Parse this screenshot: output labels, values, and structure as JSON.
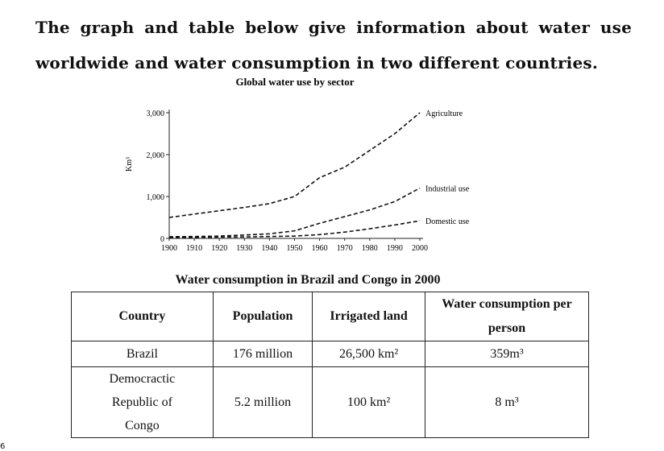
{
  "heading": "The graph and table below give information about water use worldwide and water consumption in two different countries.",
  "chart_data": {
    "type": "line",
    "title": "Global water use by sector",
    "ylabel": "Km³",
    "xlabel": "",
    "x": [
      1900,
      1910,
      1920,
      1930,
      1940,
      1950,
      1960,
      1970,
      1980,
      1990,
      2000
    ],
    "x_ticks": [
      "1900",
      "1910",
      "1920",
      "1930",
      "1940",
      "1950",
      "1960",
      "1970",
      "1980",
      "1990",
      "2000"
    ],
    "y_ticks": [
      "0",
      "1,000",
      "2,000",
      "3,000"
    ],
    "y_tick_values": [
      0,
      1000,
      2000,
      3000
    ],
    "ylim": [
      0,
      3000
    ],
    "xlim": [
      1900,
      2000
    ],
    "grid": false,
    "line_style": "dashed",
    "legend": "labels at line ends",
    "series": [
      {
        "name": "Agriculture",
        "values": [
          500,
          580,
          660,
          740,
          830,
          1000,
          1450,
          1700,
          2100,
          2500,
          3000
        ]
      },
      {
        "name": "Industrial use",
        "values": [
          40,
          45,
          55,
          80,
          110,
          180,
          360,
          520,
          680,
          880,
          1200
        ]
      },
      {
        "name": "Domestic use",
        "values": [
          20,
          25,
          30,
          35,
          45,
          55,
          90,
          150,
          230,
          320,
          420
        ]
      }
    ]
  },
  "table": {
    "title": "Water consumption in Brazil and Congo in 2000",
    "headers": [
      "Country",
      "Population",
      "Irrigated land",
      "Water consumption per person"
    ],
    "rows": [
      [
        "Brazil",
        "176 million",
        "26,500 km²",
        "359m³"
      ],
      [
        "Democractic Republic of Congo",
        "5.2 million",
        "100 km²",
        "8 m³"
      ]
    ]
  },
  "page_marker": "6"
}
